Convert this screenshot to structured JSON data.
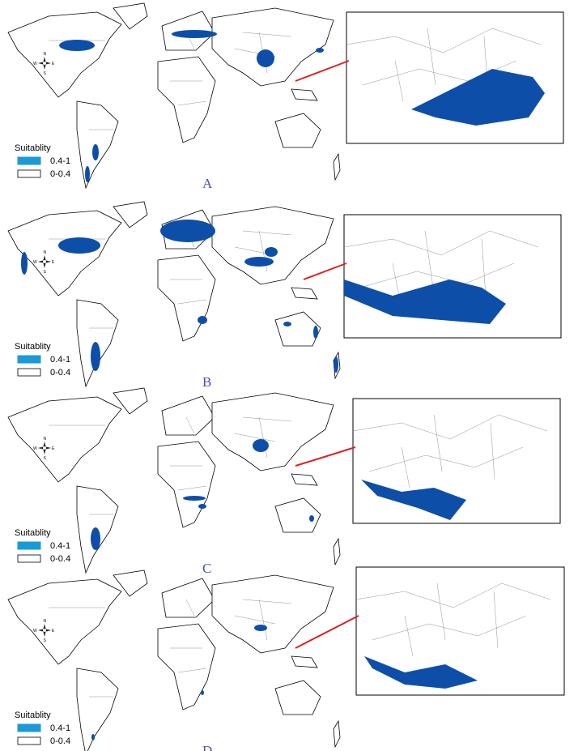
{
  "panels": [
    {
      "label": "A",
      "legend": {
        "title": "Suitablity",
        "items": [
          "0.4-1",
          "0-0.4"
        ]
      },
      "compass": {
        "n": "N",
        "e": "E",
        "s": "S",
        "w": "W"
      }
    },
    {
      "label": "B",
      "legend": {
        "title": "Suitablity",
        "items": [
          "0.4-1",
          "0-0.4"
        ]
      },
      "compass": {
        "n": "N",
        "e": "E",
        "s": "S",
        "w": "W"
      }
    },
    {
      "label": "C",
      "legend": {
        "title": "Suitablity",
        "items": [
          "0.4-1",
          "0-0.4"
        ]
      },
      "compass": {
        "n": "N",
        "e": "E",
        "s": "S",
        "w": "W"
      }
    },
    {
      "label": "D",
      "legend": {
        "title": "Suitablity",
        "items": [
          "0.4-1",
          "0-0.4"
        ]
      },
      "compass": {
        "n": "N",
        "e": "E",
        "s": "S",
        "w": "W"
      }
    }
  ]
}
